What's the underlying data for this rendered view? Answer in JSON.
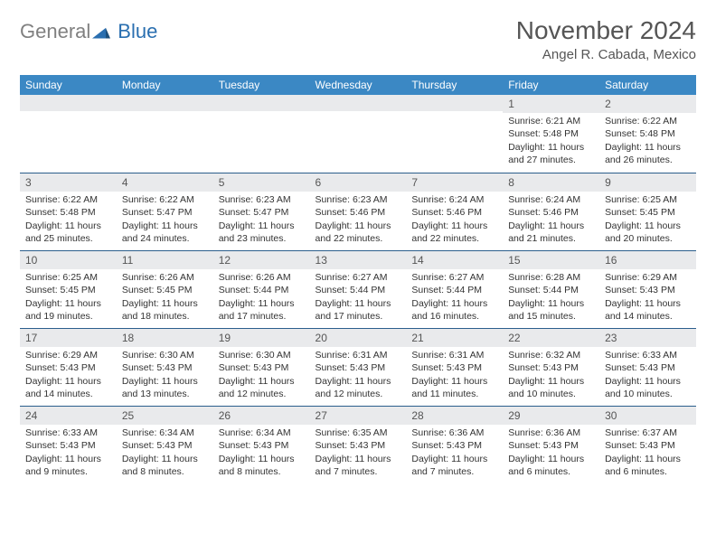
{
  "logo": {
    "gray_text": "General",
    "blue_text": "Blue"
  },
  "header": {
    "title": "November 2024",
    "location": "Angel R. Cabada, Mexico"
  },
  "colors": {
    "header_bg": "#3b88c4",
    "header_text": "#ffffff",
    "daynum_bg": "#e9eaec",
    "border": "#2b5e8c",
    "logo_gray": "#808080",
    "logo_blue": "#2a6fb0"
  },
  "day_names": [
    "Sunday",
    "Monday",
    "Tuesday",
    "Wednesday",
    "Thursday",
    "Friday",
    "Saturday"
  ],
  "weeks": [
    [
      {
        "num": "",
        "lines": []
      },
      {
        "num": "",
        "lines": []
      },
      {
        "num": "",
        "lines": []
      },
      {
        "num": "",
        "lines": []
      },
      {
        "num": "",
        "lines": []
      },
      {
        "num": "1",
        "lines": [
          "Sunrise: 6:21 AM",
          "Sunset: 5:48 PM",
          "Daylight: 11 hours and 27 minutes."
        ]
      },
      {
        "num": "2",
        "lines": [
          "Sunrise: 6:22 AM",
          "Sunset: 5:48 PM",
          "Daylight: 11 hours and 26 minutes."
        ]
      }
    ],
    [
      {
        "num": "3",
        "lines": [
          "Sunrise: 6:22 AM",
          "Sunset: 5:48 PM",
          "Daylight: 11 hours and 25 minutes."
        ]
      },
      {
        "num": "4",
        "lines": [
          "Sunrise: 6:22 AM",
          "Sunset: 5:47 PM",
          "Daylight: 11 hours and 24 minutes."
        ]
      },
      {
        "num": "5",
        "lines": [
          "Sunrise: 6:23 AM",
          "Sunset: 5:47 PM",
          "Daylight: 11 hours and 23 minutes."
        ]
      },
      {
        "num": "6",
        "lines": [
          "Sunrise: 6:23 AM",
          "Sunset: 5:46 PM",
          "Daylight: 11 hours and 22 minutes."
        ]
      },
      {
        "num": "7",
        "lines": [
          "Sunrise: 6:24 AM",
          "Sunset: 5:46 PM",
          "Daylight: 11 hours and 22 minutes."
        ]
      },
      {
        "num": "8",
        "lines": [
          "Sunrise: 6:24 AM",
          "Sunset: 5:46 PM",
          "Daylight: 11 hours and 21 minutes."
        ]
      },
      {
        "num": "9",
        "lines": [
          "Sunrise: 6:25 AM",
          "Sunset: 5:45 PM",
          "Daylight: 11 hours and 20 minutes."
        ]
      }
    ],
    [
      {
        "num": "10",
        "lines": [
          "Sunrise: 6:25 AM",
          "Sunset: 5:45 PM",
          "Daylight: 11 hours and 19 minutes."
        ]
      },
      {
        "num": "11",
        "lines": [
          "Sunrise: 6:26 AM",
          "Sunset: 5:45 PM",
          "Daylight: 11 hours and 18 minutes."
        ]
      },
      {
        "num": "12",
        "lines": [
          "Sunrise: 6:26 AM",
          "Sunset: 5:44 PM",
          "Daylight: 11 hours and 17 minutes."
        ]
      },
      {
        "num": "13",
        "lines": [
          "Sunrise: 6:27 AM",
          "Sunset: 5:44 PM",
          "Daylight: 11 hours and 17 minutes."
        ]
      },
      {
        "num": "14",
        "lines": [
          "Sunrise: 6:27 AM",
          "Sunset: 5:44 PM",
          "Daylight: 11 hours and 16 minutes."
        ]
      },
      {
        "num": "15",
        "lines": [
          "Sunrise: 6:28 AM",
          "Sunset: 5:44 PM",
          "Daylight: 11 hours and 15 minutes."
        ]
      },
      {
        "num": "16",
        "lines": [
          "Sunrise: 6:29 AM",
          "Sunset: 5:43 PM",
          "Daylight: 11 hours and 14 minutes."
        ]
      }
    ],
    [
      {
        "num": "17",
        "lines": [
          "Sunrise: 6:29 AM",
          "Sunset: 5:43 PM",
          "Daylight: 11 hours and 14 minutes."
        ]
      },
      {
        "num": "18",
        "lines": [
          "Sunrise: 6:30 AM",
          "Sunset: 5:43 PM",
          "Daylight: 11 hours and 13 minutes."
        ]
      },
      {
        "num": "19",
        "lines": [
          "Sunrise: 6:30 AM",
          "Sunset: 5:43 PM",
          "Daylight: 11 hours and 12 minutes."
        ]
      },
      {
        "num": "20",
        "lines": [
          "Sunrise: 6:31 AM",
          "Sunset: 5:43 PM",
          "Daylight: 11 hours and 12 minutes."
        ]
      },
      {
        "num": "21",
        "lines": [
          "Sunrise: 6:31 AM",
          "Sunset: 5:43 PM",
          "Daylight: 11 hours and 11 minutes."
        ]
      },
      {
        "num": "22",
        "lines": [
          "Sunrise: 6:32 AM",
          "Sunset: 5:43 PM",
          "Daylight: 11 hours and 10 minutes."
        ]
      },
      {
        "num": "23",
        "lines": [
          "Sunrise: 6:33 AM",
          "Sunset: 5:43 PM",
          "Daylight: 11 hours and 10 minutes."
        ]
      }
    ],
    [
      {
        "num": "24",
        "lines": [
          "Sunrise: 6:33 AM",
          "Sunset: 5:43 PM",
          "Daylight: 11 hours and 9 minutes."
        ]
      },
      {
        "num": "25",
        "lines": [
          "Sunrise: 6:34 AM",
          "Sunset: 5:43 PM",
          "Daylight: 11 hours and 8 minutes."
        ]
      },
      {
        "num": "26",
        "lines": [
          "Sunrise: 6:34 AM",
          "Sunset: 5:43 PM",
          "Daylight: 11 hours and 8 minutes."
        ]
      },
      {
        "num": "27",
        "lines": [
          "Sunrise: 6:35 AM",
          "Sunset: 5:43 PM",
          "Daylight: 11 hours and 7 minutes."
        ]
      },
      {
        "num": "28",
        "lines": [
          "Sunrise: 6:36 AM",
          "Sunset: 5:43 PM",
          "Daylight: 11 hours and 7 minutes."
        ]
      },
      {
        "num": "29",
        "lines": [
          "Sunrise: 6:36 AM",
          "Sunset: 5:43 PM",
          "Daylight: 11 hours and 6 minutes."
        ]
      },
      {
        "num": "30",
        "lines": [
          "Sunrise: 6:37 AM",
          "Sunset: 5:43 PM",
          "Daylight: 11 hours and 6 minutes."
        ]
      }
    ]
  ]
}
